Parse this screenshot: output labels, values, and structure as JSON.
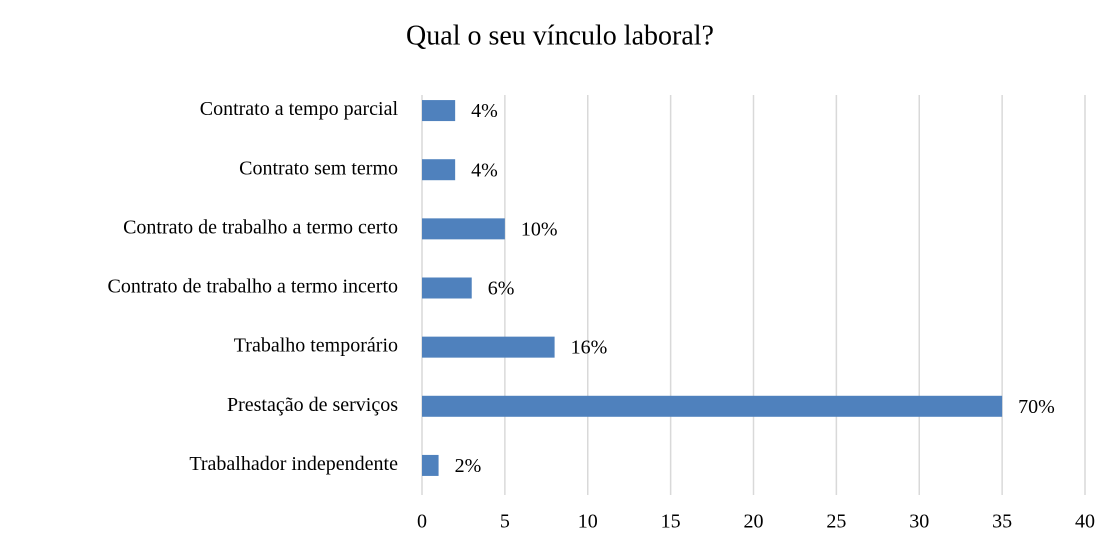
{
  "chart_data": {
    "type": "bar",
    "orientation": "horizontal",
    "title": "Qual o seu vínculo laboral?",
    "categories": [
      "Contrato a tempo parcial",
      "Contrato sem termo",
      "Contrato de trabalho a termo certo",
      "Contrato de trabalho a termo incerto",
      "Trabalho temporário",
      "Prestação de serviços",
      "Trabalhador independente"
    ],
    "values": [
      2,
      2,
      5,
      3,
      8,
      35,
      1
    ],
    "value_labels": [
      "4%",
      "4%",
      "10%",
      "6%",
      "16%",
      "70%",
      "2%"
    ],
    "color": "#4f81bd",
    "xlim": [
      0,
      40
    ],
    "xticks": [
      0,
      5,
      10,
      15,
      20,
      25,
      30,
      35,
      40
    ],
    "grid": true
  }
}
